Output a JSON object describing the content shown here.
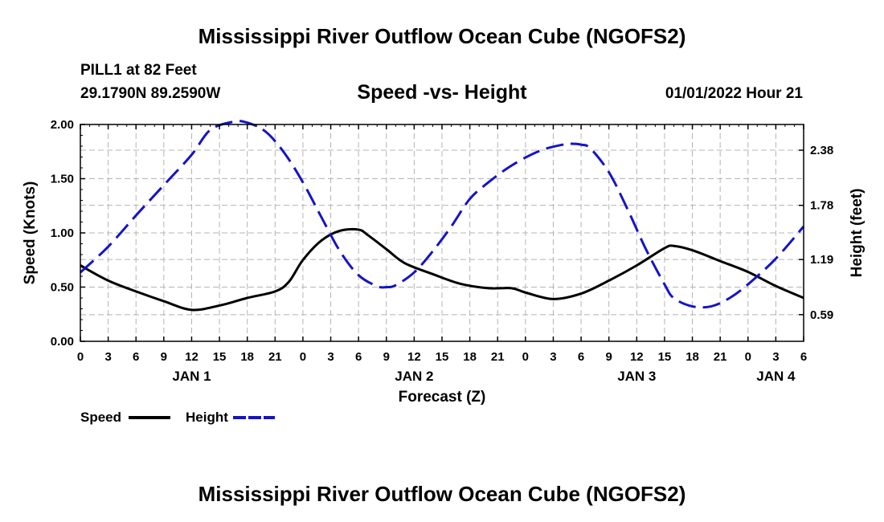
{
  "title": "Mississippi River Outflow Ocean Cube (NGOFS2)",
  "bottom_title": "Mississippi River Outflow Ocean Cube (NGOFS2)",
  "station": "PILL1 at 82 Feet",
  "coordinates": "29.1790N  89.2590W",
  "datetime": "01/01/2022 Hour 21",
  "colors": {
    "speed": "#000000",
    "height": "#1414c8",
    "grid": "#b4b4b4"
  },
  "chart_data": {
    "type": "line",
    "title": "Speed -vs- Height",
    "xlabel": "Forecast (Z)",
    "ylabel": "Speed (Knots)",
    "y2label": "Height (feet)",
    "xlim": [
      0,
      78
    ],
    "ylim": [
      0,
      2.0
    ],
    "y2lim": [
      0.3,
      2.66
    ],
    "x_ticks": [
      0,
      3,
      6,
      9,
      12,
      15,
      18,
      21,
      24,
      27,
      30,
      33,
      36,
      39,
      42,
      45,
      48,
      51,
      54,
      57,
      60,
      63,
      66,
      69,
      72,
      75,
      78
    ],
    "x_tick_labels": [
      "0",
      "3",
      "6",
      "9",
      "12",
      "15",
      "18",
      "21",
      "0",
      "3",
      "6",
      "9",
      "12",
      "15",
      "18",
      "21",
      "0",
      "3",
      "6",
      "9",
      "12",
      "15",
      "18",
      "21",
      "0",
      "3",
      "6"
    ],
    "day_labels": [
      {
        "label": "JAN 1",
        "x": 12
      },
      {
        "label": "JAN 2",
        "x": 36
      },
      {
        "label": "JAN 3",
        "x": 60
      },
      {
        "label": "JAN 4",
        "x": 75
      }
    ],
    "y_ticks": [
      0.0,
      0.5,
      1.0,
      1.5,
      2.0
    ],
    "y_tick_labels": [
      "0.00",
      "0.50",
      "1.00",
      "1.50",
      "2.00"
    ],
    "y2_ticks": [
      0.59,
      1.19,
      1.78,
      2.38
    ],
    "y2_tick_labels": [
      "0.59",
      "1.19",
      "1.78",
      "2.38"
    ],
    "series": [
      {
        "name": "Speed",
        "axis": "left",
        "style": "solid",
        "x": [
          0,
          3,
          6,
          9,
          12,
          15,
          18,
          21,
          22.5,
          24,
          26,
          28,
          30,
          31,
          33,
          35,
          38,
          41,
          44,
          46.5,
          48,
          51,
          54,
          57,
          60,
          63,
          64,
          66,
          69,
          72,
          75,
          78
        ],
        "values": [
          0.7,
          0.56,
          0.46,
          0.37,
          0.29,
          0.33,
          0.4,
          0.46,
          0.55,
          0.75,
          0.93,
          1.02,
          1.03,
          0.98,
          0.85,
          0.72,
          0.62,
          0.53,
          0.49,
          0.49,
          0.45,
          0.39,
          0.44,
          0.56,
          0.7,
          0.86,
          0.88,
          0.84,
          0.74,
          0.64,
          0.51,
          0.4
        ]
      },
      {
        "name": "Height",
        "axis": "right",
        "style": "dashed",
        "x": [
          0,
          3,
          6,
          9,
          12,
          14,
          16.5,
          18,
          20,
          22,
          24,
          26,
          28,
          30,
          32,
          33,
          34,
          36,
          38,
          40,
          42,
          44,
          46,
          48,
          50,
          52,
          53,
          54,
          55,
          57,
          59,
          61,
          63,
          64,
          66,
          68,
          70,
          72,
          75,
          78
        ],
        "values": [
          1.05,
          1.33,
          1.67,
          2.0,
          2.33,
          2.6,
          2.69,
          2.68,
          2.58,
          2.35,
          2.03,
          1.65,
          1.28,
          1.02,
          0.9,
          0.89,
          0.91,
          1.05,
          1.28,
          1.55,
          1.85,
          2.03,
          2.18,
          2.3,
          2.39,
          2.44,
          2.45,
          2.44,
          2.4,
          2.14,
          1.74,
          1.3,
          0.92,
          0.77,
          0.68,
          0.68,
          0.77,
          0.92,
          1.2,
          1.55
        ]
      }
    ],
    "legend": {
      "placement": "bottom-left",
      "items": [
        "Speed",
        "Height"
      ]
    }
  }
}
